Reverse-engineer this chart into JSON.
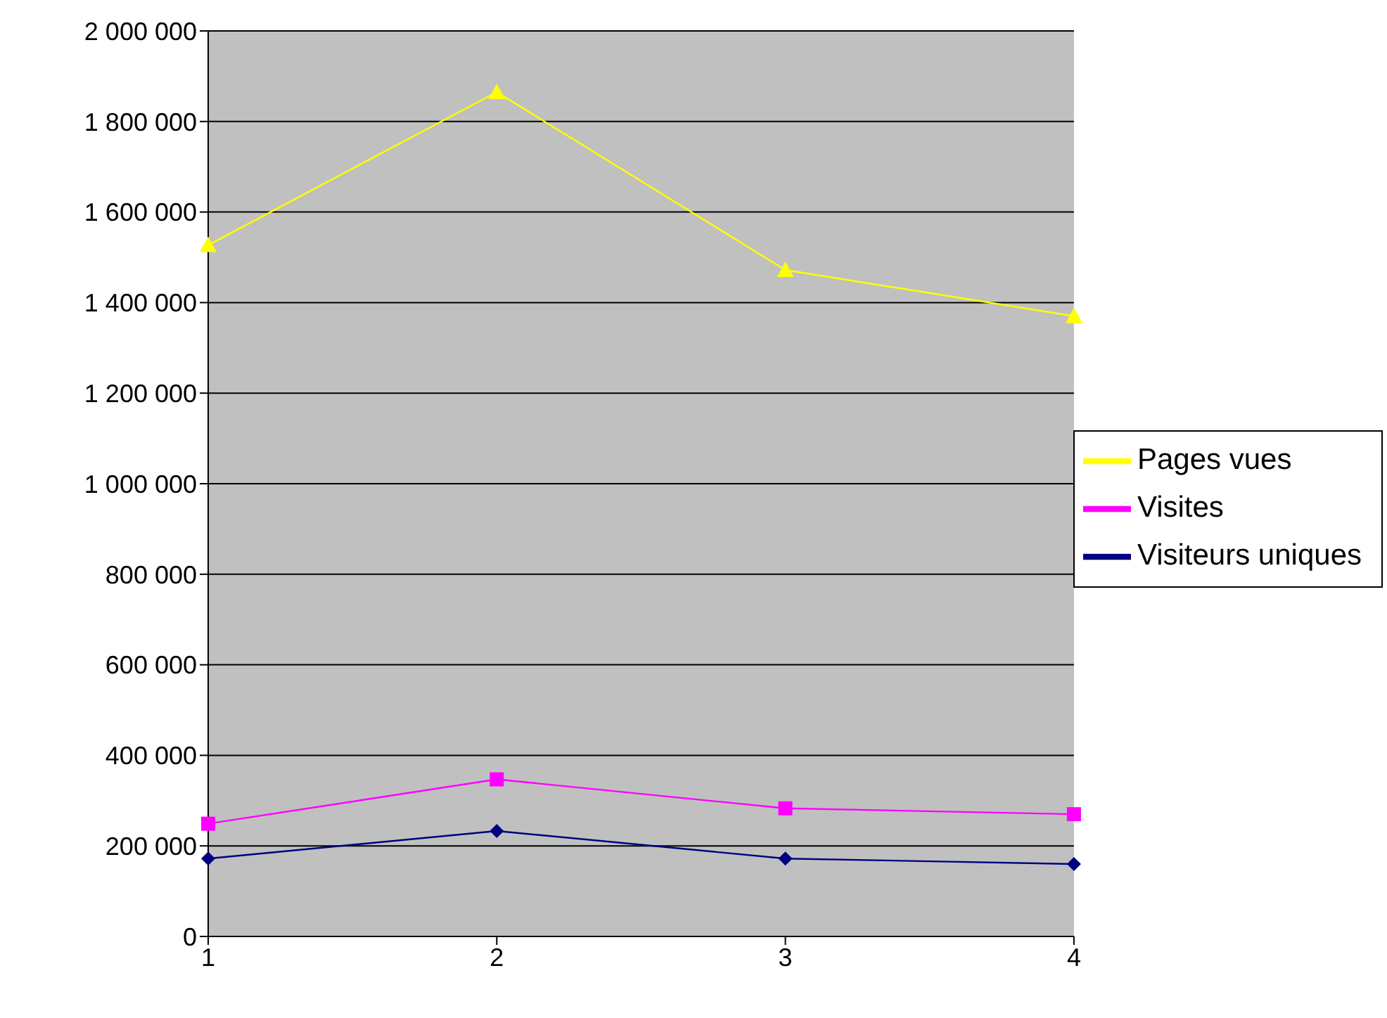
{
  "chart_data": {
    "type": "line",
    "categories": [
      "1",
      "2",
      "3",
      "4"
    ],
    "series": [
      {
        "name": "Visiteurs uniques",
        "color": "#000080",
        "marker": "diamond",
        "values": [
          172000,
          233000,
          172000,
          160000
        ]
      },
      {
        "name": "Visites",
        "color": "#ff00ff",
        "marker": "square",
        "values": [
          249000,
          347000,
          283000,
          270000
        ]
      },
      {
        "name": "Pages vues",
        "color": "#ffff00",
        "marker": "triangle",
        "values": [
          1527000,
          1865000,
          1472000,
          1370000
        ]
      }
    ],
    "ylim": [
      0,
      2000000
    ],
    "yticks": [
      {
        "value": 0,
        "label": "0"
      },
      {
        "value": 200000,
        "label": "200 000"
      },
      {
        "value": 400000,
        "label": "400 000"
      },
      {
        "value": 600000,
        "label": "600 000"
      },
      {
        "value": 800000,
        "label": "800 000"
      },
      {
        "value": 1000000,
        "label": "1 000 000"
      },
      {
        "value": 1200000,
        "label": "1 200 000"
      },
      {
        "value": 1400000,
        "label": "1 400 000"
      },
      {
        "value": 1600000,
        "label": "1 600 000"
      },
      {
        "value": 1800000,
        "label": "1 800 000"
      },
      {
        "value": 2000000,
        "label": "2 000 000"
      }
    ],
    "grid": "y",
    "legend": "right"
  }
}
